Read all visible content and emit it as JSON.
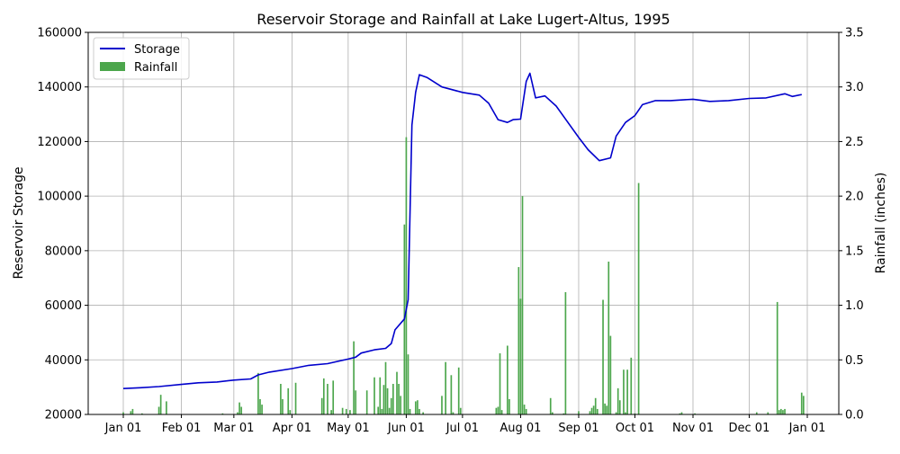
{
  "chart_data": {
    "type": "bar+line",
    "title": "Reservoir Storage and Rainfall at Lake Lugert-Altus, 1995",
    "xlabel": "",
    "ylabel_left": "Reservoir Storage",
    "ylabel_right": "Rainfall (inches)",
    "ylim_left": [
      20000,
      160000
    ],
    "ylim_right": [
      0,
      3.5
    ],
    "yticks_left": [
      "20000",
      "40000",
      "60000",
      "80000",
      "100000",
      "120000",
      "140000",
      "160000"
    ],
    "yticks_right": [
      "0.0",
      "0.5",
      "1.0",
      "1.5",
      "2.0",
      "2.5",
      "3.0",
      "3.5"
    ],
    "xticks": [
      "Jan 01",
      "Feb 01",
      "Mar 01",
      "Apr 01",
      "May 01",
      "Jun 01",
      "Jul 01",
      "Aug 01",
      "Sep 01",
      "Oct 01",
      "Nov 01",
      "Dec 01",
      "Jan 01"
    ],
    "grid": true,
    "legend_position": "upper-left",
    "series": [
      {
        "name": "Storage",
        "kind": "line",
        "axis": "left",
        "color": "#0000cc",
        "points": [
          [
            "1995-01-01",
            29500
          ],
          [
            "1995-01-10",
            29800
          ],
          [
            "1995-01-20",
            30200
          ],
          [
            "1995-02-01",
            31000
          ],
          [
            "1995-02-10",
            31600
          ],
          [
            "1995-02-20",
            31900
          ],
          [
            "1995-03-01",
            32600
          ],
          [
            "1995-03-10",
            33000
          ],
          [
            "1995-03-14",
            34500
          ],
          [
            "1995-03-20",
            35500
          ],
          [
            "1995-04-01",
            36800
          ],
          [
            "1995-04-10",
            38000
          ],
          [
            "1995-04-20",
            38600
          ],
          [
            "1995-05-01",
            40300
          ],
          [
            "1995-05-05",
            41000
          ],
          [
            "1995-05-08",
            42500
          ],
          [
            "1995-05-15",
            43700
          ],
          [
            "1995-05-21",
            44200
          ],
          [
            "1995-05-24",
            46000
          ],
          [
            "1995-05-26",
            51000
          ],
          [
            "1995-05-31",
            55000
          ],
          [
            "1995-06-02",
            62000
          ],
          [
            "1995-06-04",
            126000
          ],
          [
            "1995-06-06",
            138000
          ],
          [
            "1995-06-08",
            144500
          ],
          [
            "1995-06-12",
            143500
          ],
          [
            "1995-06-20",
            140000
          ],
          [
            "1995-07-01",
            138000
          ],
          [
            "1995-07-10",
            137000
          ],
          [
            "1995-07-15",
            134000
          ],
          [
            "1995-07-20",
            128000
          ],
          [
            "1995-07-25",
            127000
          ],
          [
            "1995-07-28",
            128000
          ],
          [
            "1995-08-01",
            128200
          ],
          [
            "1995-08-04",
            142000
          ],
          [
            "1995-08-06",
            145000
          ],
          [
            "1995-08-09",
            136000
          ],
          [
            "1995-08-14",
            136700
          ],
          [
            "1995-08-20",
            133000
          ],
          [
            "1995-09-01",
            121500
          ],
          [
            "1995-09-06",
            117000
          ],
          [
            "1995-09-12",
            113000
          ],
          [
            "1995-09-18",
            114000
          ],
          [
            "1995-09-21",
            122000
          ],
          [
            "1995-09-26",
            127000
          ],
          [
            "1995-10-01",
            129500
          ],
          [
            "1995-10-05",
            133500
          ],
          [
            "1995-10-12",
            135000
          ],
          [
            "1995-10-20",
            135000
          ],
          [
            "1995-11-01",
            135500
          ],
          [
            "1995-11-10",
            134700
          ],
          [
            "1995-11-20",
            135000
          ],
          [
            "1995-12-01",
            135800
          ],
          [
            "1995-12-10",
            136000
          ],
          [
            "1995-12-20",
            137500
          ],
          [
            "1995-12-24",
            136500
          ],
          [
            "1995-12-29",
            137200
          ]
        ]
      },
      {
        "name": "Rainfall",
        "kind": "bar",
        "axis": "right",
        "color": "#4ca64c",
        "points": [
          [
            "1995-01-01",
            0.02
          ],
          [
            "1995-01-05",
            0.03
          ],
          [
            "1995-01-06",
            0.05
          ],
          [
            "1995-01-11",
            0.01
          ],
          [
            "1995-01-20",
            0.07
          ],
          [
            "1995-01-21",
            0.18
          ],
          [
            "1995-01-24",
            0.12
          ],
          [
            "1995-02-23",
            0.01
          ],
          [
            "1995-03-03",
            0.02
          ],
          [
            "1995-03-04",
            0.11
          ],
          [
            "1995-03-05",
            0.07
          ],
          [
            "1995-03-14",
            0.38
          ],
          [
            "1995-03-15",
            0.14
          ],
          [
            "1995-03-16",
            0.09
          ],
          [
            "1995-03-26",
            0.28
          ],
          [
            "1995-03-27",
            0.14
          ],
          [
            "1995-03-30",
            0.24
          ],
          [
            "1995-03-31",
            0.04
          ],
          [
            "1995-04-03",
            0.29
          ],
          [
            "1995-04-17",
            0.15
          ],
          [
            "1995-04-18",
            0.33
          ],
          [
            "1995-04-20",
            0.28
          ],
          [
            "1995-04-22",
            0.04
          ],
          [
            "1995-04-23",
            0.31
          ],
          [
            "1995-04-28",
            0.06
          ],
          [
            "1995-04-30",
            0.05
          ],
          [
            "1995-05-02",
            0.04
          ],
          [
            "1995-05-04",
            0.67
          ],
          [
            "1995-05-05",
            0.22
          ],
          [
            "1995-05-11",
            0.22
          ],
          [
            "1995-05-15",
            0.34
          ],
          [
            "1995-05-17",
            0.07
          ],
          [
            "1995-05-18",
            0.34
          ],
          [
            "1995-05-19",
            0.05
          ],
          [
            "1995-05-20",
            0.27
          ],
          [
            "1995-05-21",
            0.48
          ],
          [
            "1995-05-22",
            0.24
          ],
          [
            "1995-05-23",
            0.06
          ],
          [
            "1995-05-24",
            0.15
          ],
          [
            "1995-05-25",
            0.28
          ],
          [
            "1995-05-27",
            0.39
          ],
          [
            "1995-05-28",
            0.28
          ],
          [
            "1995-05-29",
            0.17
          ],
          [
            "1995-05-31",
            1.74
          ],
          [
            "1995-06-01",
            2.54
          ],
          [
            "1995-06-02",
            0.55
          ],
          [
            "1995-06-03",
            0.05
          ],
          [
            "1995-06-06",
            0.12
          ],
          [
            "1995-06-07",
            0.13
          ],
          [
            "1995-06-08",
            0.05
          ],
          [
            "1995-06-10",
            0.02
          ],
          [
            "1995-06-20",
            0.17
          ],
          [
            "1995-06-22",
            0.48
          ],
          [
            "1995-06-25",
            0.36
          ],
          [
            "1995-06-26",
            0.02
          ],
          [
            "1995-06-29",
            0.43
          ],
          [
            "1995-06-30",
            0.06
          ],
          [
            "1995-07-19",
            0.06
          ],
          [
            "1995-07-20",
            0.07
          ],
          [
            "1995-07-21",
            0.56
          ],
          [
            "1995-07-22",
            0.04
          ],
          [
            "1995-07-25",
            0.63
          ],
          [
            "1995-07-26",
            0.14
          ],
          [
            "1995-07-31",
            1.35
          ],
          [
            "1995-08-01",
            1.06
          ],
          [
            "1995-08-02",
            2.0
          ],
          [
            "1995-08-03",
            0.09
          ],
          [
            "1995-08-04",
            0.05
          ],
          [
            "1995-08-17",
            0.15
          ],
          [
            "1995-08-18",
            0.02
          ],
          [
            "1995-08-24",
            0.01
          ],
          [
            "1995-08-25",
            1.12
          ],
          [
            "1995-09-01",
            0.03
          ],
          [
            "1995-09-07",
            0.03
          ],
          [
            "1995-09-08",
            0.06
          ],
          [
            "1995-09-09",
            0.08
          ],
          [
            "1995-09-10",
            0.15
          ],
          [
            "1995-09-11",
            0.05
          ],
          [
            "1995-09-14",
            1.05
          ],
          [
            "1995-09-15",
            0.1
          ],
          [
            "1995-09-16",
            0.08
          ],
          [
            "1995-09-17",
            1.4
          ],
          [
            "1995-09-18",
            0.72
          ],
          [
            "1995-09-21",
            0.02
          ],
          [
            "1995-09-22",
            0.24
          ],
          [
            "1995-09-23",
            0.13
          ],
          [
            "1995-09-25",
            0.41
          ],
          [
            "1995-09-26",
            0.02
          ],
          [
            "1995-09-27",
            0.41
          ],
          [
            "1995-09-29",
            0.52
          ],
          [
            "1995-10-01",
            0.01
          ],
          [
            "1995-10-03",
            2.12
          ],
          [
            "1995-10-25",
            0.01
          ],
          [
            "1995-10-26",
            0.02
          ],
          [
            "1995-11-02",
            0.01
          ],
          [
            "1995-12-05",
            0.02
          ],
          [
            "1995-12-11",
            0.02
          ],
          [
            "1995-12-16",
            1.03
          ],
          [
            "1995-12-17",
            0.04
          ],
          [
            "1995-12-18",
            0.05
          ],
          [
            "1995-12-19",
            0.04
          ],
          [
            "1995-12-20",
            0.05
          ],
          [
            "1995-12-29",
            0.2
          ],
          [
            "1995-12-30",
            0.17
          ]
        ]
      }
    ]
  }
}
